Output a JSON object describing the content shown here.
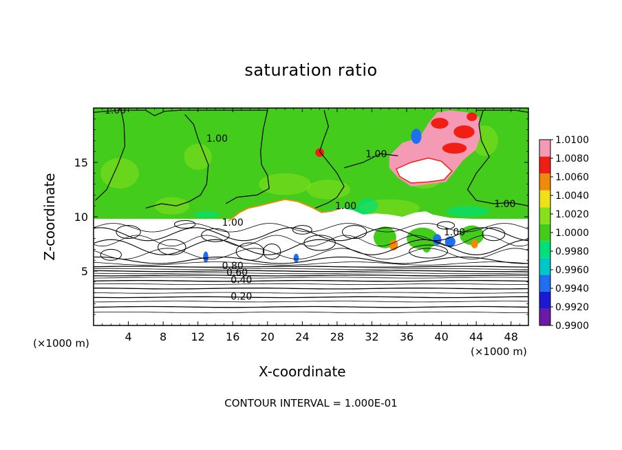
{
  "chart_data": {
    "type": "heatmap",
    "title": "saturation ratio",
    "xlabel": "X-coordinate",
    "ylabel": "Z-coordinate",
    "x_unit_label_left": "(×1000 m)",
    "x_unit_label_right": "(×1000 m)",
    "xlim": [
      0,
      50
    ],
    "ylim": [
      0,
      20
    ],
    "x_ticks": [
      4,
      8,
      12,
      16,
      20,
      24,
      28,
      32,
      36,
      40,
      44,
      48
    ],
    "x_tick_labels": [
      "4",
      "8",
      "12",
      "16",
      "20",
      "24",
      "28",
      "32",
      "36",
      "40",
      "44",
      "48"
    ],
    "y_ticks": [
      5,
      10,
      15
    ],
    "y_tick_labels": [
      "5",
      "10",
      "15"
    ],
    "contour_interval_text": "CONTOUR INTERVAL = 1.000E-01",
    "colorbar": {
      "levels": [
        0.99,
        0.992,
        0.994,
        0.996,
        0.998,
        1.0,
        1.002,
        1.004,
        1.006,
        1.008,
        1.01
      ],
      "labels": [
        "0.9900",
        "0.9920",
        "0.9940",
        "0.9960",
        "0.9980",
        "1.0000",
        "1.0020",
        "1.0040",
        "1.0060",
        "1.0080",
        "1.0100"
      ],
      "colors": [
        "#6a1aa5",
        "#1a1ad2",
        "#1f6ff0",
        "#00c8c8",
        "#00e078",
        "#44cc1c",
        "#86e01c",
        "#f0e018",
        "#f08a0a",
        "#f01e14",
        "#f49ab4"
      ]
    },
    "shading": {
      "saturated_region_z_range": [
        9.8,
        20
      ],
      "saturated_background_value": 1.0,
      "supersaturated_patch_label": "1.0100"
    },
    "contour_labels": [
      {
        "text": "1.00",
        "x": 2.5,
        "z": 19.8
      },
      {
        "text": "1.00",
        "x": 14.2,
        "z": 17.2
      },
      {
        "text": "1.00",
        "x": 32.5,
        "z": 15.8
      },
      {
        "text": "1.00",
        "x": 29.0,
        "z": 11.0
      },
      {
        "text": "1.00",
        "x": 47.3,
        "z": 11.2
      },
      {
        "text": "1.00",
        "x": 16.0,
        "z": 9.5
      },
      {
        "text": "1.00",
        "x": 41.5,
        "z": 8.6
      },
      {
        "text": "0.80",
        "x": 16.0,
        "z": 5.5
      },
      {
        "text": "0.60",
        "x": 16.5,
        "z": 4.9
      },
      {
        "text": "0.40",
        "x": 17.0,
        "z": 4.2
      },
      {
        "text": "0.20",
        "x": 17.0,
        "z": 2.7
      }
    ]
  }
}
